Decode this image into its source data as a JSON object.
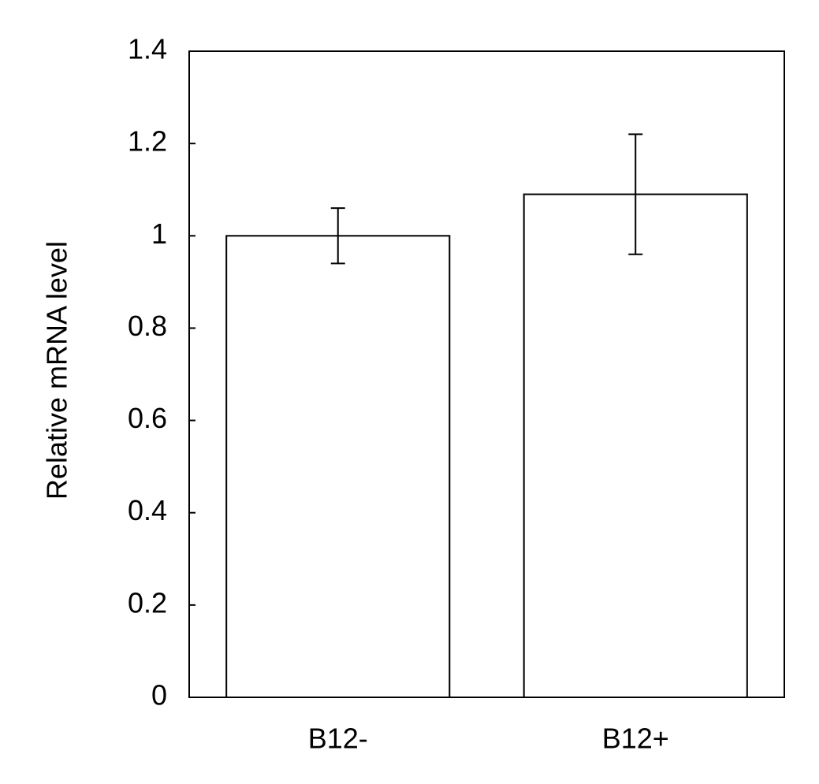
{
  "chart_data": {
    "type": "bar",
    "y_label": "Relative mRNA level",
    "categories": [
      "B12-",
      "B12+"
    ],
    "values": [
      1.0,
      1.09
    ],
    "errors": [
      0.06,
      0.13
    ],
    "color": "#ffffff",
    "edge_color": "#000000",
    "ylim": [
      0,
      1.4
    ],
    "yticks": [
      0,
      0.2,
      0.4,
      0.6,
      0.8,
      1,
      1.2,
      1.4
    ],
    "grid": false
  }
}
